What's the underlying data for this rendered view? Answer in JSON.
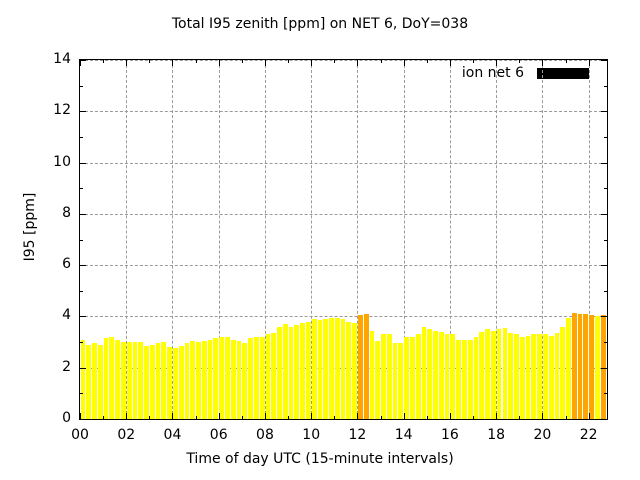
{
  "chart_data": {
    "type": "bar",
    "title": "Total I95 zenith [ppm] on NET 6, DoY=038",
    "xlabel": "Time of day UTC (15-minute intervals)",
    "ylabel": "I95 [ppm]",
    "ylim": [
      0,
      14
    ],
    "xlim_hours": [
      0,
      22.75
    ],
    "interval_minutes": 15,
    "grid": true,
    "ytick_labels": [
      "0",
      "2",
      "4",
      "6",
      "8",
      "10",
      "12",
      "14"
    ],
    "xtick_labels": [
      "00",
      "02",
      "04",
      "06",
      "08",
      "10",
      "12",
      "14",
      "16",
      "18",
      "20",
      "22"
    ],
    "legend": [
      {
        "name": "ion net 6",
        "color": "#000000"
      }
    ],
    "legend_position": "top-right-inside",
    "bar_colors": {
      "normal": "#ffff00",
      "highlight": "#ffa500"
    },
    "highlight_indices": [
      48,
      49,
      85,
      86,
      87,
      88,
      90
    ],
    "x_times": [
      "00:00",
      "00:15",
      "00:30",
      "00:45",
      "01:00",
      "01:15",
      "01:30",
      "01:45",
      "02:00",
      "02:15",
      "02:30",
      "02:45",
      "03:00",
      "03:15",
      "03:30",
      "03:45",
      "04:00",
      "04:15",
      "04:30",
      "04:45",
      "05:00",
      "05:15",
      "05:30",
      "05:45",
      "06:00",
      "06:15",
      "06:30",
      "06:45",
      "07:00",
      "07:15",
      "07:30",
      "07:45",
      "08:00",
      "08:15",
      "08:30",
      "08:45",
      "09:00",
      "09:15",
      "09:30",
      "09:45",
      "10:00",
      "10:15",
      "10:30",
      "10:45",
      "11:00",
      "11:15",
      "11:30",
      "11:45",
      "12:00",
      "12:15",
      "12:30",
      "12:45",
      "13:00",
      "13:15",
      "13:30",
      "13:45",
      "14:00",
      "14:15",
      "14:30",
      "14:45",
      "15:00",
      "15:15",
      "15:30",
      "15:45",
      "16:00",
      "16:15",
      "16:30",
      "16:45",
      "17:00",
      "17:15",
      "17:30",
      "17:45",
      "18:00",
      "18:15",
      "18:30",
      "18:45",
      "19:00",
      "19:15",
      "19:30",
      "19:45",
      "20:00",
      "20:15",
      "20:30",
      "20:45",
      "21:00",
      "21:15",
      "21:30",
      "21:45",
      "22:00",
      "22:15",
      "22:30",
      "22:45"
    ],
    "values": [
      3.1,
      2.9,
      2.95,
      2.9,
      3.15,
      3.2,
      3.1,
      3.0,
      3.0,
      3.0,
      3.0,
      2.85,
      2.9,
      2.95,
      3.0,
      2.8,
      2.75,
      2.85,
      2.95,
      3.05,
      3.0,
      3.05,
      3.1,
      3.15,
      3.2,
      3.2,
      3.1,
      3.05,
      2.95,
      3.15,
      3.2,
      3.2,
      3.3,
      3.35,
      3.6,
      3.7,
      3.6,
      3.65,
      3.75,
      3.8,
      3.9,
      3.85,
      3.9,
      3.95,
      3.95,
      3.9,
      3.8,
      3.75,
      4.05,
      4.1,
      3.45,
      3.05,
      3.3,
      3.3,
      2.95,
      2.95,
      3.2,
      3.2,
      3.3,
      3.6,
      3.5,
      3.45,
      3.4,
      3.3,
      3.3,
      3.1,
      3.1,
      3.1,
      3.2,
      3.4,
      3.5,
      3.45,
      3.5,
      3.55,
      3.35,
      3.3,
      3.2,
      3.25,
      3.3,
      3.3,
      3.3,
      3.25,
      3.35,
      3.6,
      3.95,
      4.15,
      4.1,
      4.1,
      4.05,
      4.0,
      4.05,
      4.0
    ]
  }
}
